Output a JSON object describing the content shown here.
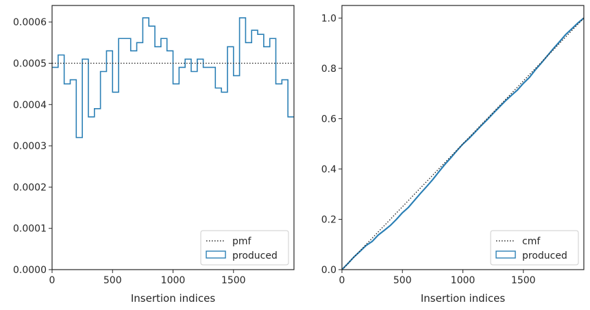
{
  "chart_data": [
    {
      "type": "histogram",
      "xlabel": "Insertion indices",
      "ylabel": "",
      "xlim": [
        0,
        2000
      ],
      "ylim": [
        0,
        0.00064
      ],
      "xticks": [
        0,
        500,
        1000,
        1500
      ],
      "xtick_labels": [
        "0",
        "500",
        "1000",
        "1500"
      ],
      "yticks": [
        0,
        0.0001,
        0.0002,
        0.0003,
        0.0004,
        0.0005,
        0.0006
      ],
      "ytick_labels": [
        "0.0000",
        "0.0001",
        "0.0002",
        "0.0003",
        "0.0004",
        "0.0005",
        "0.0006"
      ],
      "legend_position": "lower-right",
      "series": [
        {
          "name": "pmf",
          "style": "dotted",
          "color": "#262626",
          "x": [
            0,
            2000
          ],
          "y": [
            0.0005,
            0.0005
          ]
        },
        {
          "name": "produced",
          "style": "step",
          "color": "#2a7fb5",
          "bin_edges": [
            0,
            50,
            100,
            150,
            200,
            250,
            300,
            350,
            400,
            450,
            500,
            550,
            600,
            650,
            700,
            750,
            800,
            850,
            900,
            950,
            1000,
            1050,
            1100,
            1150,
            1200,
            1250,
            1300,
            1350,
            1400,
            1450,
            1500,
            1550,
            1600,
            1650,
            1700,
            1750,
            1800,
            1850,
            1900,
            1950,
            2000
          ],
          "values": [
            0.00049,
            0.00052,
            0.00045,
            0.00046,
            0.00032,
            0.00051,
            0.00037,
            0.00039,
            0.00048,
            0.00053,
            0.00043,
            0.00056,
            0.00056,
            0.00053,
            0.00055,
            0.00061,
            0.00059,
            0.00054,
            0.00056,
            0.00053,
            0.00045,
            0.00049,
            0.00051,
            0.00048,
            0.00051,
            0.00049,
            0.00049,
            0.00044,
            0.00043,
            0.00054,
            0.00047,
            0.00061,
            0.00055,
            0.00058,
            0.00057,
            0.00054,
            0.00056,
            0.00045,
            0.00046,
            0.00037
          ]
        }
      ]
    },
    {
      "type": "line",
      "xlabel": "Insertion indices",
      "ylabel": "",
      "xlim": [
        0,
        2000
      ],
      "ylim": [
        0,
        1.05
      ],
      "xticks": [
        0,
        500,
        1000,
        1500
      ],
      "xtick_labels": [
        "0",
        "500",
        "1000",
        "1500"
      ],
      "yticks": [
        0,
        0.2,
        0.4,
        0.6,
        0.8,
        1.0
      ],
      "ytick_labels": [
        "0.0",
        "0.2",
        "0.4",
        "0.6",
        "0.8",
        "1.0"
      ],
      "legend_position": "lower-right",
      "series": [
        {
          "name": "cmf",
          "style": "dotted",
          "color": "#262626",
          "x": [
            0,
            2000
          ],
          "y": [
            0,
            1.0
          ]
        },
        {
          "name": "produced",
          "style": "line",
          "color": "#2a7fb5",
          "x": [
            0,
            50,
            100,
            150,
            200,
            250,
            300,
            350,
            400,
            450,
            500,
            550,
            600,
            650,
            700,
            750,
            800,
            850,
            900,
            950,
            1000,
            1050,
            1100,
            1150,
            1200,
            1250,
            1300,
            1350,
            1400,
            1450,
            1500,
            1550,
            1600,
            1650,
            1700,
            1750,
            1800,
            1850,
            1900,
            1950,
            2000
          ],
          "y": [
            0,
            0.0245,
            0.0505,
            0.073,
            0.096,
            0.112,
            0.1375,
            0.156,
            0.1755,
            0.1995,
            0.226,
            0.2475,
            0.2755,
            0.3035,
            0.33,
            0.3575,
            0.388,
            0.4175,
            0.4445,
            0.4725,
            0.499,
            0.5215,
            0.546,
            0.5715,
            0.5955,
            0.621,
            0.6455,
            0.67,
            0.692,
            0.7135,
            0.7405,
            0.764,
            0.7945,
            0.822,
            0.851,
            0.8795,
            0.9065,
            0.9345,
            0.957,
            0.98,
            1.0
          ]
        }
      ]
    }
  ]
}
